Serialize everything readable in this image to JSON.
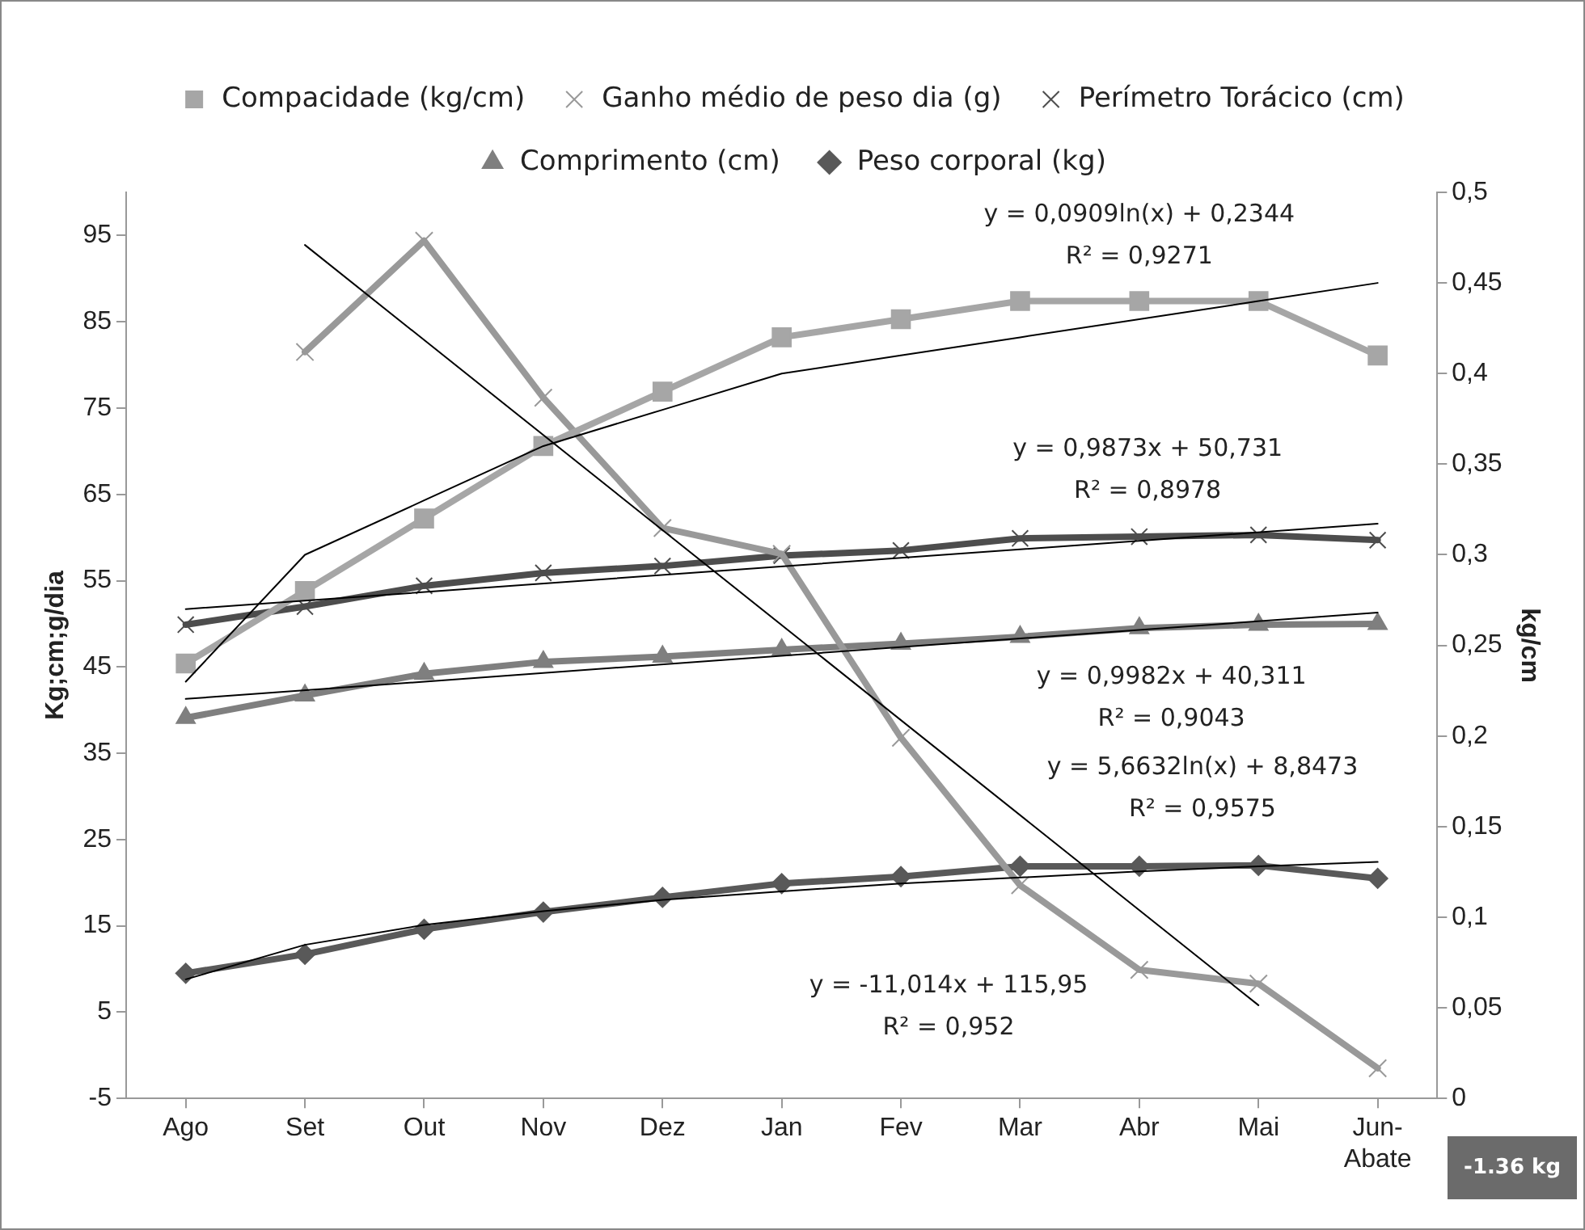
{
  "chart_data": {
    "type": "line",
    "ylabel": "Kg;cm;g/dia",
    "y2label": "kg/cm",
    "categories": [
      "Ago",
      "Set",
      "Out",
      "Nov",
      "Dez",
      "Jan",
      "Fev",
      "Mar",
      "Abr",
      "Mai",
      "Jun-Abate"
    ],
    "ylim": [
      -5,
      100
    ],
    "yticks": [
      -5,
      5,
      15,
      25,
      35,
      45,
      55,
      65,
      75,
      85,
      95
    ],
    "y2lim": [
      0,
      0.5
    ],
    "y2ticks": [
      0,
      {
        "value": 0.05,
        "label": "0,05"
      },
      {
        "value": 0.1,
        "label": "0,1"
      },
      {
        "value": 0.15,
        "label": "0,15"
      },
      {
        "value": 0.2,
        "label": "0,2"
      },
      {
        "value": 0.25,
        "label": "0,25"
      },
      {
        "value": 0.3,
        "label": "0,3"
      },
      {
        "value": 0.35,
        "label": "0,35"
      },
      {
        "value": 0.4,
        "label": "0,4"
      },
      {
        "value": 0.45,
        "label": "0,45"
      },
      {
        "value": 0.5,
        "label": "0,5"
      }
    ],
    "grid": false,
    "legend": "top",
    "series": [
      {
        "name": "Peso corporal (kg)",
        "color": "#595959",
        "marker": "diamond",
        "values": [
          9.5,
          11.7,
          14.6,
          16.6,
          18.3,
          19.9,
          20.7,
          21.9,
          21.9,
          22.0,
          20.5
        ]
      },
      {
        "name": "Comprimento (cm)",
        "color": "#7f7f7f",
        "marker": "triangle",
        "values": [
          39.1,
          41.7,
          44.2,
          45.6,
          46.2,
          47.0,
          47.7,
          48.5,
          49.5,
          49.9,
          50.0
        ]
      },
      {
        "name": "Perímetro Torácico (cm)",
        "color": "#4d4d4d",
        "marker": "cross",
        "values": [
          49.9,
          52.0,
          54.4,
          55.9,
          56.7,
          57.9,
          58.5,
          59.9,
          60.1,
          60.3,
          59.7
        ]
      },
      {
        "name": "Ganho médio de peso dia (g)",
        "color": "#999999",
        "marker": "cross",
        "values": [
          null,
          81.5,
          94.4,
          76.2,
          61.1,
          58.1,
          36.8,
          19.7,
          9.9,
          8.3,
          -1.5
        ]
      },
      {
        "name": "Compacidade (kg/cm)",
        "color": "#a6a6a6",
        "marker": "square",
        "axis": "y2",
        "values": [
          0.24,
          0.28,
          0.32,
          0.36,
          0.39,
          0.42,
          0.43,
          0.44,
          0.44,
          0.44,
          0.41
        ]
      },
      {
        "type": "line",
        "color": "#000000",
        "marker": "none",
        "axis": "y2",
        "x": [
          "Ago",
          "Set",
          "Out",
          "Nov",
          "Dez",
          "Jan",
          "Fev",
          "Mar",
          "Abr",
          "Mai",
          "Jun-Abate"
        ],
        "values": [
          0.23,
          0.3,
          0.33,
          0.36,
          0.38,
          0.4,
          0.41,
          0.42,
          0.43,
          0.44,
          0.45
        ]
      },
      {
        "type": "line",
        "color": "#000000",
        "marker": "none",
        "x": [
          "Ago",
          "Jun-Abate"
        ],
        "values": [
          51.7,
          61.6
        ]
      },
      {
        "type": "line",
        "color": "#000000",
        "marker": "none",
        "x": [
          "Ago",
          "Jun-Abate"
        ],
        "values": [
          41.3,
          51.3
        ]
      },
      {
        "type": "line",
        "color": "#000000",
        "marker": "none",
        "x": [
          "Ago",
          "Set",
          "Out",
          "Nov",
          "Dez",
          "Jan",
          "Fev",
          "Mar",
          "Abr",
          "Mai",
          "Jun-Abate"
        ],
        "values": [
          8.8,
          12.8,
          15.1,
          16.7,
          18.0,
          19.0,
          19.9,
          20.6,
          21.3,
          21.9,
          22.4
        ]
      },
      {
        "type": "line",
        "color": "#000000",
        "marker": "none",
        "x": [
          "Set",
          "Mai"
        ],
        "values": [
          93.9,
          5.8
        ]
      }
    ],
    "annotations": [
      "y = 0,0909ln(x) + 0,2344\nR² = 0,9271",
      "y = 0,9873x + 50,731\nR² = 0,8978",
      "y = 0,9982x + 40,311\nR² = 0,9043",
      "y = 5,6632ln(x) + 8,8473\nR² = 0,9575",
      "y = -11,014x + 115,95\nR² = 0,952",
      "-1.36 kg"
    ]
  }
}
